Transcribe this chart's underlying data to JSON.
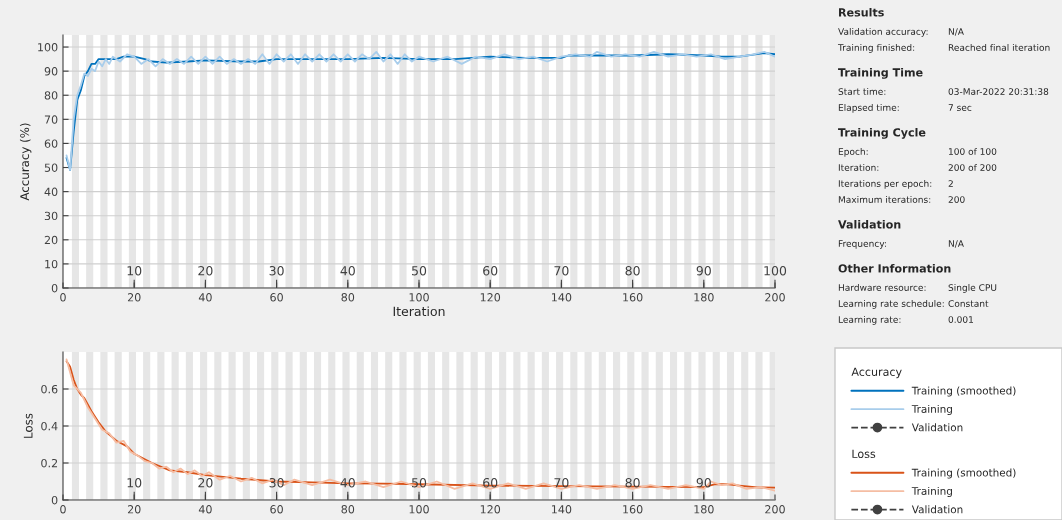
{
  "chart_data": [
    {
      "type": "line",
      "ylabel": "Accuracy (%)",
      "xlabel": "Iteration",
      "xlim": [
        0,
        200
      ],
      "ylim": [
        0,
        105
      ],
      "xticks": [
        0,
        20,
        40,
        60,
        80,
        100,
        120,
        140,
        160,
        180,
        200
      ],
      "yticks": [
        0,
        10,
        20,
        30,
        40,
        50,
        60,
        70,
        80,
        90,
        100
      ],
      "x2lim": [
        0,
        100
      ],
      "x2ticks": [
        10,
        20,
        30,
        40,
        50,
        60,
        70,
        80,
        90,
        100
      ],
      "grid": "y",
      "legend": "right",
      "legend_title": "Accuracy",
      "bands": [
        {
          "axis": "x",
          "from": 2.5,
          "to": 4.5,
          "color": "#e6e6e6"
        },
        {
          "axis": "x",
          "from": 6.5,
          "to": 8.5,
          "color": "#e6e6e6"
        },
        {
          "axis": "x",
          "from": 10.5,
          "to": 12.5,
          "color": "#e6e6e6"
        },
        {
          "axis": "x",
          "from": 14.5,
          "to": 16.5,
          "color": "#e6e6e6"
        },
        {
          "axis": "x",
          "from": 18.5,
          "to": 20.5,
          "color": "#e6e6e6"
        },
        {
          "axis": "x",
          "from": 22.5,
          "to": 24.5,
          "color": "#e6e6e6"
        },
        {
          "axis": "x",
          "from": 26.5,
          "to": 28.5,
          "color": "#e6e6e6"
        },
        {
          "axis": "x",
          "from": 30.5,
          "to": 32.5,
          "color": "#e6e6e6"
        },
        {
          "axis": "x",
          "from": 34.5,
          "to": 36.5,
          "color": "#e6e6e6"
        },
        {
          "axis": "x",
          "from": 38.5,
          "to": 40.5,
          "color": "#e6e6e6"
        },
        {
          "axis": "x",
          "from": 42.5,
          "to": 44.5,
          "color": "#e6e6e6"
        },
        {
          "axis": "x",
          "from": 46.5,
          "to": 48.5,
          "color": "#e6e6e6"
        },
        {
          "axis": "x",
          "from": 50.5,
          "to": 52.5,
          "color": "#e6e6e6"
        },
        {
          "axis": "x",
          "from": 54.5,
          "to": 56.5,
          "color": "#e6e6e6"
        },
        {
          "axis": "x",
          "from": 58.5,
          "to": 60.5,
          "color": "#e6e6e6"
        },
        {
          "axis": "x",
          "from": 62.5,
          "to": 64.5,
          "color": "#e6e6e6"
        },
        {
          "axis": "x",
          "from": 66.5,
          "to": 68.5,
          "color": "#e6e6e6"
        },
        {
          "axis": "x",
          "from": 70.5,
          "to": 72.5,
          "color": "#e6e6e6"
        },
        {
          "axis": "x",
          "from": 74.5,
          "to": 76.5,
          "color": "#e6e6e6"
        },
        {
          "axis": "x",
          "from": 78.5,
          "to": 80.5,
          "color": "#e6e6e6"
        },
        {
          "axis": "x",
          "from": 82.5,
          "to": 84.5,
          "color": "#e6e6e6"
        },
        {
          "axis": "x",
          "from": 86.5,
          "to": 88.5,
          "color": "#e6e6e6"
        },
        {
          "axis": "x",
          "from": 90.5,
          "to": 92.5,
          "color": "#e6e6e6"
        },
        {
          "axis": "x",
          "from": 94.5,
          "to": 96.5,
          "color": "#e6e6e6"
        },
        {
          "axis": "x",
          "from": 98.5,
          "to": 100.5,
          "color": "#e6e6e6"
        },
        {
          "axis": "x",
          "from": 102.5,
          "to": 104.5,
          "color": "#e6e6e6"
        },
        {
          "axis": "x",
          "from": 106.5,
          "to": 108.5,
          "color": "#e6e6e6"
        },
        {
          "axis": "x",
          "from": 110.5,
          "to": 112.5,
          "color": "#e6e6e6"
        },
        {
          "axis": "x",
          "from": 114.5,
          "to": 116.5,
          "color": "#e6e6e6"
        },
        {
          "axis": "x",
          "from": 118.5,
          "to": 120.5,
          "color": "#e6e6e6"
        },
        {
          "axis": "x",
          "from": 122.5,
          "to": 124.5,
          "color": "#e6e6e6"
        },
        {
          "axis": "x",
          "from": 126.5,
          "to": 128.5,
          "color": "#e6e6e6"
        },
        {
          "axis": "x",
          "from": 130.5,
          "to": 132.5,
          "color": "#e6e6e6"
        },
        {
          "axis": "x",
          "from": 134.5,
          "to": 136.5,
          "color": "#e6e6e6"
        },
        {
          "axis": "x",
          "from": 138.5,
          "to": 140.5,
          "color": "#e6e6e6"
        },
        {
          "axis": "x",
          "from": 142.5,
          "to": 144.5,
          "color": "#e6e6e6"
        },
        {
          "axis": "x",
          "from": 146.5,
          "to": 148.5,
          "color": "#e6e6e6"
        },
        {
          "axis": "x",
          "from": 150.5,
          "to": 152.5,
          "color": "#e6e6e6"
        },
        {
          "axis": "x",
          "from": 154.5,
          "to": 156.5,
          "color": "#e6e6e6"
        },
        {
          "axis": "x",
          "from": 158.5,
          "to": 160.5,
          "color": "#e6e6e6"
        },
        {
          "axis": "x",
          "from": 162.5,
          "to": 164.5,
          "color": "#e6e6e6"
        },
        {
          "axis": "x",
          "from": 166.5,
          "to": 168.5,
          "color": "#e6e6e6"
        },
        {
          "axis": "x",
          "from": 170.5,
          "to": 172.5,
          "color": "#e6e6e6"
        },
        {
          "axis": "x",
          "from": 174.5,
          "to": 176.5,
          "color": "#e6e6e6"
        },
        {
          "axis": "x",
          "from": 178.5,
          "to": 180.5,
          "color": "#e6e6e6"
        },
        {
          "axis": "x",
          "from": 182.5,
          "to": 184.5,
          "color": "#e6e6e6"
        },
        {
          "axis": "x",
          "from": 186.5,
          "to": 188.5,
          "color": "#e6e6e6"
        },
        {
          "axis": "x",
          "from": 190.5,
          "to": 192.5,
          "color": "#e6e6e6"
        },
        {
          "axis": "x",
          "from": 194.5,
          "to": 196.5,
          "color": "#e6e6e6"
        },
        {
          "axis": "x",
          "from": 198.5,
          "to": 200,
          "color": "#e6e6e6"
        }
      ],
      "series": [
        {
          "name": "Training (smoothed)",
          "color": "#0072bd",
          "line_style": "solid",
          "marker": "none",
          "x": [
            1,
            2,
            3,
            4,
            5,
            6,
            7,
            8,
            9,
            10,
            12,
            15,
            17,
            20,
            23,
            25,
            29,
            35,
            40,
            50,
            55,
            60,
            70,
            80,
            90,
            100,
            110,
            120,
            130,
            140,
            142,
            150,
            160,
            170,
            180,
            185,
            190,
            197,
            200
          ],
          "values": [
            54,
            49,
            65,
            78,
            82,
            88,
            90,
            93,
            93,
            95,
            95,
            95,
            96,
            96,
            95,
            94,
            93.5,
            94,
            94.5,
            94,
            94,
            95,
            95,
            95,
            95.5,
            95,
            95,
            96,
            95.5,
            95.5,
            96.5,
            96.5,
            96.5,
            97,
            96.5,
            96,
            96,
            97.5,
            97
          ]
        },
        {
          "name": "Training",
          "color": "#a8cdeb",
          "line_style": "solid",
          "marker": "none",
          "x": [
            1,
            2,
            3,
            4,
            5,
            6,
            7,
            8,
            9,
            10,
            11,
            12,
            13,
            14,
            16,
            18,
            20,
            22,
            24,
            26,
            28,
            30,
            32,
            34,
            36,
            38,
            40,
            42,
            44,
            46,
            48,
            50,
            52,
            54,
            56,
            58,
            60,
            62,
            64,
            66,
            68,
            70,
            72,
            74,
            76,
            78,
            80,
            82,
            84,
            86,
            88,
            90,
            92,
            94,
            96,
            98,
            100,
            104,
            108,
            112,
            116,
            120,
            124,
            128,
            132,
            136,
            140,
            144,
            148,
            150,
            154,
            158,
            162,
            166,
            170,
            174,
            178,
            182,
            186,
            190,
            194,
            197,
            200
          ],
          "values": [
            55,
            49,
            70,
            80,
            84,
            89,
            88,
            91,
            90,
            94,
            92,
            95,
            93,
            96,
            94,
            97,
            96,
            93,
            95,
            92,
            95,
            93,
            95,
            93,
            96,
            93,
            96,
            93,
            96,
            93,
            95,
            93,
            95,
            93,
            97,
            93,
            97,
            94,
            97,
            93,
            97,
            94,
            97,
            94,
            97,
            94,
            97,
            94,
            97,
            95,
            98,
            94,
            97,
            93,
            97,
            94,
            96,
            94,
            96,
            93,
            96,
            95,
            97,
            95,
            96,
            94,
            96,
            97,
            96,
            98,
            96,
            97,
            96,
            98,
            96,
            97,
            96,
            97,
            95,
            96,
            97,
            98,
            96
          ]
        },
        {
          "name": "Validation",
          "color": "#404040",
          "line_style": "dashed",
          "marker": "circle"
        }
      ]
    },
    {
      "type": "line",
      "ylabel": "Loss",
      "xlim": [
        0,
        200
      ],
      "ylim": [
        0,
        0.8
      ],
      "xticks": [
        0,
        20,
        40,
        60,
        80,
        100,
        120,
        140,
        160,
        180,
        200
      ],
      "yticks": [
        0,
        0.2,
        0.4,
        0.6
      ],
      "x2lim": [
        0,
        100
      ],
      "x2ticks": [
        10,
        20,
        30,
        40,
        50,
        60,
        70,
        80,
        90
      ],
      "grid": "y",
      "legend": "right",
      "legend_title": "Loss",
      "bands": [
        {
          "axis": "x",
          "from": 2.5,
          "to": 4.5,
          "color": "#e6e6e6"
        },
        {
          "axis": "x",
          "from": 6.5,
          "to": 8.5,
          "color": "#e6e6e6"
        },
        {
          "axis": "x",
          "from": 10.5,
          "to": 12.5,
          "color": "#e6e6e6"
        },
        {
          "axis": "x",
          "from": 14.5,
          "to": 16.5,
          "color": "#e6e6e6"
        },
        {
          "axis": "x",
          "from": 18.5,
          "to": 20.5,
          "color": "#e6e6e6"
        },
        {
          "axis": "x",
          "from": 22.5,
          "to": 24.5,
          "color": "#e6e6e6"
        },
        {
          "axis": "x",
          "from": 26.5,
          "to": 28.5,
          "color": "#e6e6e6"
        },
        {
          "axis": "x",
          "from": 30.5,
          "to": 32.5,
          "color": "#e6e6e6"
        },
        {
          "axis": "x",
          "from": 34.5,
          "to": 36.5,
          "color": "#e6e6e6"
        },
        {
          "axis": "x",
          "from": 38.5,
          "to": 40.5,
          "color": "#e6e6e6"
        },
        {
          "axis": "x",
          "from": 42.5,
          "to": 44.5,
          "color": "#e6e6e6"
        },
        {
          "axis": "x",
          "from": 46.5,
          "to": 48.5,
          "color": "#e6e6e6"
        },
        {
          "axis": "x",
          "from": 50.5,
          "to": 52.5,
          "color": "#e6e6e6"
        },
        {
          "axis": "x",
          "from": 54.5,
          "to": 56.5,
          "color": "#e6e6e6"
        },
        {
          "axis": "x",
          "from": 58.5,
          "to": 60.5,
          "color": "#e6e6e6"
        },
        {
          "axis": "x",
          "from": 62.5,
          "to": 64.5,
          "color": "#e6e6e6"
        },
        {
          "axis": "x",
          "from": 66.5,
          "to": 68.5,
          "color": "#e6e6e6"
        },
        {
          "axis": "x",
          "from": 70.5,
          "to": 72.5,
          "color": "#e6e6e6"
        },
        {
          "axis": "x",
          "from": 74.5,
          "to": 76.5,
          "color": "#e6e6e6"
        },
        {
          "axis": "x",
          "from": 78.5,
          "to": 80.5,
          "color": "#e6e6e6"
        },
        {
          "axis": "x",
          "from": 82.5,
          "to": 84.5,
          "color": "#e6e6e6"
        },
        {
          "axis": "x",
          "from": 86.5,
          "to": 88.5,
          "color": "#e6e6e6"
        },
        {
          "axis": "x",
          "from": 90.5,
          "to": 92.5,
          "color": "#e6e6e6"
        },
        {
          "axis": "x",
          "from": 94.5,
          "to": 96.5,
          "color": "#e6e6e6"
        },
        {
          "axis": "x",
          "from": 98.5,
          "to": 100.5,
          "color": "#e6e6e6"
        },
        {
          "axis": "x",
          "from": 102.5,
          "to": 104.5,
          "color": "#e6e6e6"
        },
        {
          "axis": "x",
          "from": 106.5,
          "to": 108.5,
          "color": "#e6e6e6"
        },
        {
          "axis": "x",
          "from": 110.5,
          "to": 112.5,
          "color": "#e6e6e6"
        },
        {
          "axis": "x",
          "from": 114.5,
          "to": 116.5,
          "color": "#e6e6e6"
        },
        {
          "axis": "x",
          "from": 118.5,
          "to": 120.5,
          "color": "#e6e6e6"
        },
        {
          "axis": "x",
          "from": 122.5,
          "to": 124.5,
          "color": "#e6e6e6"
        },
        {
          "axis": "x",
          "from": 126.5,
          "to": 128.5,
          "color": "#e6e6e6"
        },
        {
          "axis": "x",
          "from": 130.5,
          "to": 132.5,
          "color": "#e6e6e6"
        },
        {
          "axis": "x",
          "from": 134.5,
          "to": 136.5,
          "color": "#e6e6e6"
        },
        {
          "axis": "x",
          "from": 138.5,
          "to": 140.5,
          "color": "#e6e6e6"
        },
        {
          "axis": "x",
          "from": 142.5,
          "to": 144.5,
          "color": "#e6e6e6"
        },
        {
          "axis": "x",
          "from": 146.5,
          "to": 148.5,
          "color": "#e6e6e6"
        },
        {
          "axis": "x",
          "from": 150.5,
          "to": 152.5,
          "color": "#e6e6e6"
        },
        {
          "axis": "x",
          "from": 154.5,
          "to": 156.5,
          "color": "#e6e6e6"
        },
        {
          "axis": "x",
          "from": 158.5,
          "to": 160.5,
          "color": "#e6e6e6"
        },
        {
          "axis": "x",
          "from": 162.5,
          "to": 164.5,
          "color": "#e6e6e6"
        },
        {
          "axis": "x",
          "from": 166.5,
          "to": 168.5,
          "color": "#e6e6e6"
        },
        {
          "axis": "x",
          "from": 170.5,
          "to": 172.5,
          "color": "#e6e6e6"
        },
        {
          "axis": "x",
          "from": 174.5,
          "to": 176.5,
          "color": "#e6e6e6"
        },
        {
          "axis": "x",
          "from": 178.5,
          "to": 180.5,
          "color": "#e6e6e6"
        },
        {
          "axis": "x",
          "from": 182.5,
          "to": 184.5,
          "color": "#e6e6e6"
        },
        {
          "axis": "x",
          "from": 186.5,
          "to": 188.5,
          "color": "#e6e6e6"
        },
        {
          "axis": "x",
          "from": 190.5,
          "to": 192.5,
          "color": "#e6e6e6"
        },
        {
          "axis": "x",
          "from": 194.5,
          "to": 196.5,
          "color": "#e6e6e6"
        },
        {
          "axis": "x",
          "from": 198.5,
          "to": 200,
          "color": "#e6e6e6"
        }
      ],
      "series": [
        {
          "name": "Training (smoothed)",
          "color": "#d95319",
          "line_style": "solid",
          "marker": "none",
          "x": [
            1,
            2,
            3,
            4,
            5,
            6,
            8,
            10,
            12,
            15,
            18,
            20,
            25,
            30,
            35,
            40,
            50,
            60,
            70,
            80,
            90,
            100,
            120,
            140,
            160,
            180,
            183,
            187,
            190,
            195,
            200
          ],
          "values": [
            0.75,
            0.72,
            0.65,
            0.6,
            0.57,
            0.55,
            0.48,
            0.42,
            0.37,
            0.32,
            0.29,
            0.25,
            0.2,
            0.16,
            0.15,
            0.135,
            0.115,
            0.1,
            0.095,
            0.09,
            0.088,
            0.085,
            0.078,
            0.075,
            0.072,
            0.07,
            0.085,
            0.085,
            0.078,
            0.068,
            0.067
          ]
        },
        {
          "name": "Training",
          "color": "#f5bda3",
          "line_style": "solid",
          "marker": "none",
          "x": [
            1,
            3,
            5,
            7,
            9,
            11,
            13,
            15,
            17,
            19,
            21,
            23,
            25,
            27,
            29,
            31,
            33,
            35,
            37,
            39,
            41,
            44,
            47,
            50,
            53,
            56,
            59,
            62,
            65,
            70,
            75,
            80,
            85,
            90,
            95,
            100,
            105,
            110,
            115,
            120,
            125,
            130,
            135,
            140,
            145,
            150,
            155,
            160,
            165,
            170,
            175,
            180,
            182,
            185,
            188,
            192,
            196,
            200
          ],
          "values": [
            0.76,
            0.62,
            0.58,
            0.5,
            0.44,
            0.38,
            0.36,
            0.31,
            0.32,
            0.26,
            0.24,
            0.21,
            0.2,
            0.17,
            0.18,
            0.15,
            0.17,
            0.14,
            0.16,
            0.13,
            0.15,
            0.11,
            0.13,
            0.1,
            0.12,
            0.09,
            0.11,
            0.08,
            0.11,
            0.08,
            0.11,
            0.08,
            0.1,
            0.07,
            0.1,
            0.07,
            0.1,
            0.06,
            0.09,
            0.06,
            0.09,
            0.06,
            0.09,
            0.06,
            0.08,
            0.06,
            0.08,
            0.06,
            0.08,
            0.06,
            0.08,
            0.06,
            0.1,
            0.08,
            0.09,
            0.06,
            0.07,
            0.05
          ]
        },
        {
          "name": "Validation",
          "color": "#404040",
          "line_style": "dashed",
          "marker": "circle"
        }
      ]
    },
    {
      "type": "other",
      "title": "Results",
      "annotations": [
        "Validation accuracy:",
        "N/A",
        "Training finished:",
        "Reached final iteration"
      ]
    },
    {
      "type": "other",
      "title": "Training Time",
      "annotations": [
        "Start time:",
        "03-Mar-2022 20:31:38",
        "Elapsed time:",
        "7 sec"
      ]
    },
    {
      "type": "other",
      "title": "Training Cycle",
      "annotations": [
        "Epoch:",
        "100 of 100",
        "Iteration:",
        "200 of 200",
        "Iterations per epoch:",
        "2",
        "Maximum iterations:",
        "200"
      ]
    },
    {
      "type": "other",
      "title": "Validation",
      "annotations": [
        "Frequency:",
        "N/A"
      ]
    },
    {
      "type": "other",
      "title": "Other Information",
      "annotations": [
        "Hardware resource:",
        "Single CPU",
        "Learning rate schedule:",
        "Constant",
        "Learning rate:",
        "0.001"
      ]
    }
  ]
}
